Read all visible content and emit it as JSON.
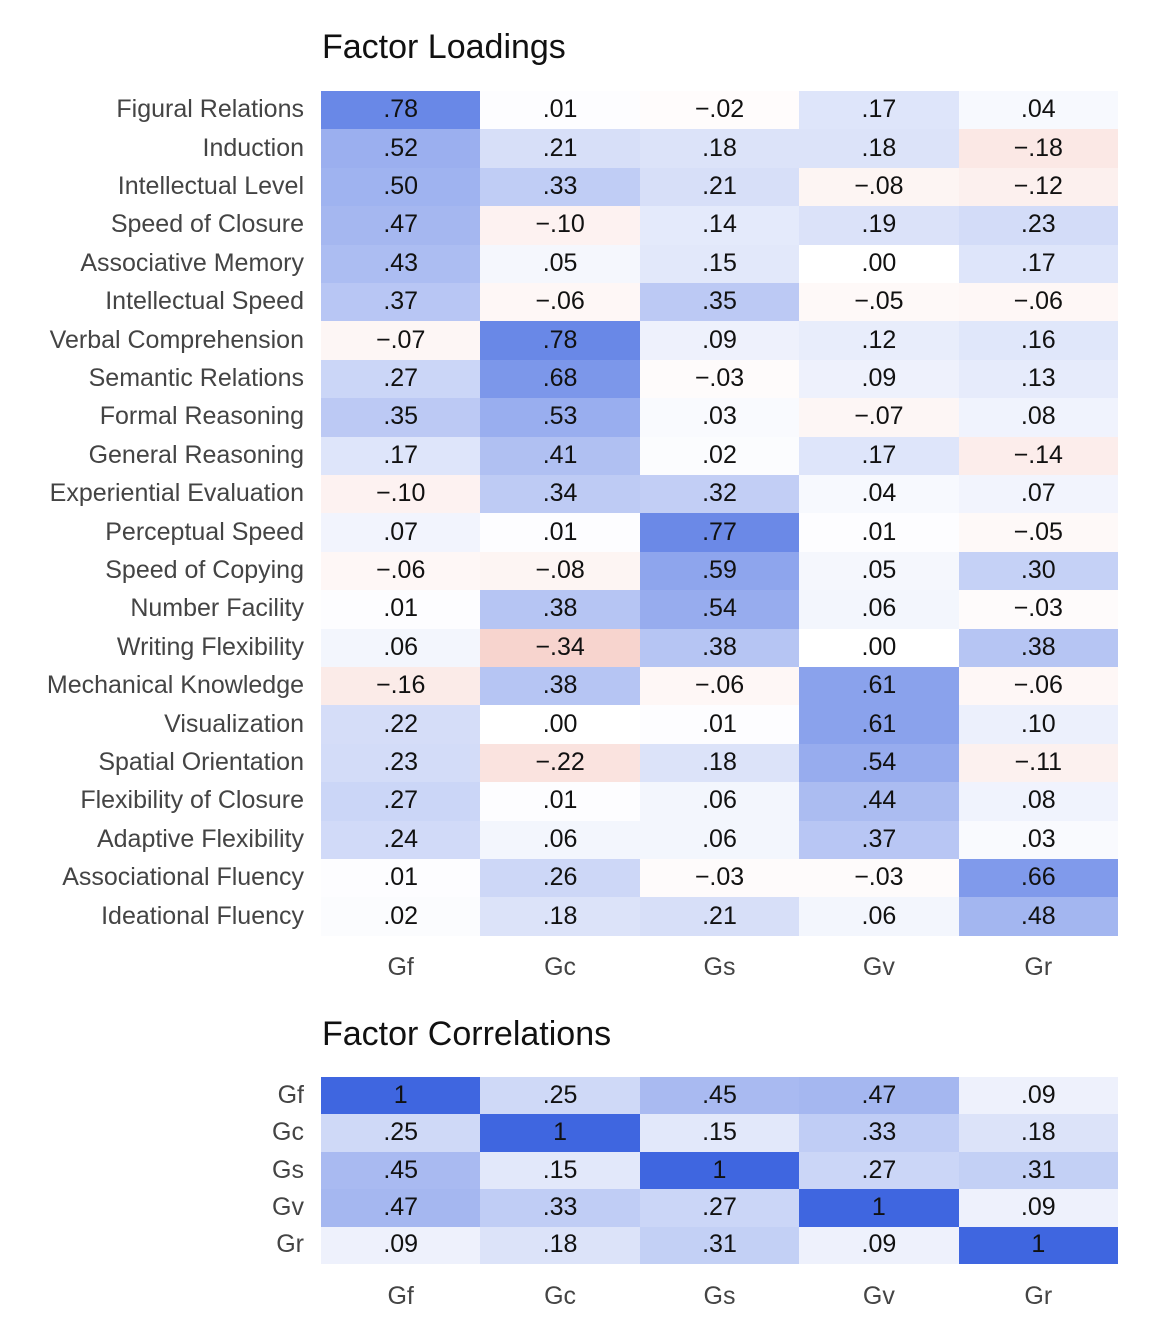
{
  "chart_data": [
    {
      "type": "heatmap",
      "title": "Factor Loadings",
      "columns": [
        "Gf",
        "Gc",
        "Gs",
        "Gv",
        "Gr"
      ],
      "rows": [
        "Figural Relations",
        "Induction",
        "Intellectual Level",
        "Speed of Closure",
        "Associative Memory",
        "Intellectual Speed",
        "Verbal Comprehension",
        "Semantic Relations",
        "Formal Reasoning",
        "General Reasoning",
        "Experiential Evaluation",
        "Perceptual Speed",
        "Speed of Copying",
        "Number Facility",
        "Writing Flexibility",
        "Mechanical Knowledge",
        "Visualization",
        "Spatial Orientation",
        "Flexibility of Closure",
        "Adaptive Flexibility",
        "Associational Fluency",
        "Ideational Fluency"
      ],
      "values": [
        [
          0.78,
          0.01,
          -0.02,
          0.17,
          0.04
        ],
        [
          0.52,
          0.21,
          0.18,
          0.18,
          -0.18
        ],
        [
          0.5,
          0.33,
          0.21,
          -0.08,
          -0.12
        ],
        [
          0.47,
          -0.1,
          0.14,
          0.19,
          0.23
        ],
        [
          0.43,
          0.05,
          0.15,
          0.0,
          0.17
        ],
        [
          0.37,
          -0.06,
          0.35,
          -0.05,
          -0.06
        ],
        [
          -0.07,
          0.78,
          0.09,
          0.12,
          0.16
        ],
        [
          0.27,
          0.68,
          -0.03,
          0.09,
          0.13
        ],
        [
          0.35,
          0.53,
          0.03,
          -0.07,
          0.08
        ],
        [
          0.17,
          0.41,
          0.02,
          0.17,
          -0.14
        ],
        [
          -0.1,
          0.34,
          0.32,
          0.04,
          0.07
        ],
        [
          0.07,
          0.01,
          0.77,
          0.01,
          -0.05
        ],
        [
          -0.06,
          -0.08,
          0.59,
          0.05,
          0.3
        ],
        [
          0.01,
          0.38,
          0.54,
          0.06,
          -0.03
        ],
        [
          0.06,
          -0.34,
          0.38,
          0.0,
          0.38
        ],
        [
          -0.16,
          0.38,
          -0.06,
          0.61,
          -0.06
        ],
        [
          0.22,
          0.0,
          0.01,
          0.61,
          0.1
        ],
        [
          0.23,
          -0.22,
          0.18,
          0.54,
          -0.11
        ],
        [
          0.27,
          0.01,
          0.06,
          0.44,
          0.08
        ],
        [
          0.24,
          0.06,
          0.06,
          0.37,
          0.03
        ],
        [
          0.01,
          0.26,
          -0.03,
          -0.03,
          0.66
        ],
        [
          0.02,
          0.18,
          0.21,
          0.06,
          0.48
        ]
      ],
      "labels": [
        [
          ".78",
          ".01",
          "−.02",
          ".17",
          ".04"
        ],
        [
          ".52",
          ".21",
          ".18",
          ".18",
          "−.18"
        ],
        [
          ".50",
          ".33",
          ".21",
          "−.08",
          "−.12"
        ],
        [
          ".47",
          "−.10",
          ".14",
          ".19",
          ".23"
        ],
        [
          ".43",
          ".05",
          ".15",
          ".00",
          ".17"
        ],
        [
          ".37",
          "−.06",
          ".35",
          "−.05",
          "−.06"
        ],
        [
          "−.07",
          ".78",
          ".09",
          ".12",
          ".16"
        ],
        [
          ".27",
          ".68",
          "−.03",
          ".09",
          ".13"
        ],
        [
          ".35",
          ".53",
          ".03",
          "−.07",
          ".08"
        ],
        [
          ".17",
          ".41",
          ".02",
          ".17",
          "−.14"
        ],
        [
          "−.10",
          ".34",
          ".32",
          ".04",
          ".07"
        ],
        [
          ".07",
          ".01",
          ".77",
          ".01",
          "−.05"
        ],
        [
          "−.06",
          "−.08",
          ".59",
          ".05",
          ".30"
        ],
        [
          ".01",
          ".38",
          ".54",
          ".06",
          "−.03"
        ],
        [
          ".06",
          "−.34",
          ".38",
          ".00",
          ".38"
        ],
        [
          "−.16",
          ".38",
          "−.06",
          ".61",
          "−.06"
        ],
        [
          ".22",
          ".00",
          ".01",
          ".61",
          ".10"
        ],
        [
          ".23",
          "−.22",
          ".18",
          ".54",
          "−.11"
        ],
        [
          ".27",
          ".01",
          ".06",
          ".44",
          ".08"
        ],
        [
          ".24",
          ".06",
          ".06",
          ".37",
          ".03"
        ],
        [
          ".01",
          ".26",
          "−.03",
          "−.03",
          ".66"
        ],
        [
          ".02",
          ".18",
          ".21",
          ".06",
          ".48"
        ]
      ],
      "color_scale": {
        "negative": "#e8806e",
        "zero": "#ffffff",
        "positive": "#3f66e0",
        "range": [
          -1,
          1
        ]
      }
    },
    {
      "type": "heatmap",
      "title": "Factor Correlations",
      "columns": [
        "Gf",
        "Gc",
        "Gs",
        "Gv",
        "Gr"
      ],
      "rows": [
        "Gf",
        "Gc",
        "Gs",
        "Gv",
        "Gr"
      ],
      "values": [
        [
          1,
          0.25,
          0.45,
          0.47,
          0.09
        ],
        [
          0.25,
          1,
          0.15,
          0.33,
          0.18
        ],
        [
          0.45,
          0.15,
          1,
          0.27,
          0.31
        ],
        [
          0.47,
          0.33,
          0.27,
          1,
          0.09
        ],
        [
          0.09,
          0.18,
          0.31,
          0.09,
          1
        ]
      ],
      "labels": [
        [
          "1",
          ".25",
          ".45",
          ".47",
          ".09"
        ],
        [
          ".25",
          "1",
          ".15",
          ".33",
          ".18"
        ],
        [
          ".45",
          ".15",
          "1",
          ".27",
          ".31"
        ],
        [
          ".47",
          ".33",
          ".27",
          "1",
          ".09"
        ],
        [
          ".09",
          ".18",
          ".31",
          ".09",
          "1"
        ]
      ],
      "color_scale": {
        "negative": "#e8806e",
        "zero": "#ffffff",
        "positive": "#3f66e0",
        "range": [
          -1,
          1
        ]
      }
    }
  ]
}
